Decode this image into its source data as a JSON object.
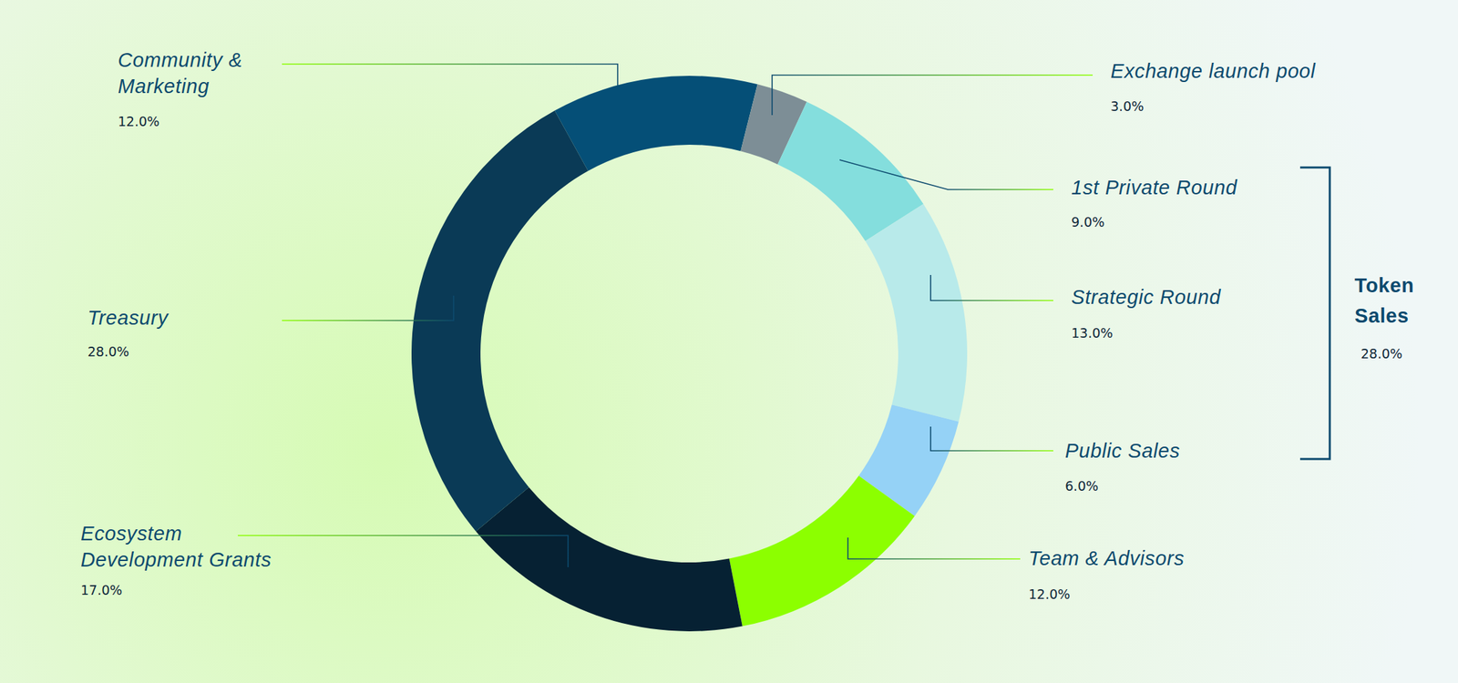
{
  "chart_data": {
    "type": "donut",
    "categories": [
      "Community &\nMarketing",
      "Exchange launch pool",
      "1st Private Round",
      "Strategic Round",
      "Public Sales",
      "Team & Advisors",
      "Ecosystem\nDevelopment Grants",
      "Treasury"
    ],
    "values": [
      12,
      3,
      9,
      13,
      6,
      12,
      17,
      28
    ],
    "value_labels": [
      "12.0%",
      "3.0%",
      "9.0%",
      "13.0%",
      "6.0%",
      "12.0%",
      "17.0%",
      "28.0%"
    ],
    "colors": [
      "#054f77",
      "#7d8e96",
      "#84dedd",
      "#b8eaea",
      "#95d2f6",
      "#8cff00",
      "#062133",
      "#0a3a56"
    ],
    "groups": [
      {
        "name": "Token\nSales",
        "value": 28,
        "value_label": "28.0%",
        "categories": [
          "1st Private Round",
          "Strategic Round",
          "Public Sales"
        ]
      }
    ]
  }
}
